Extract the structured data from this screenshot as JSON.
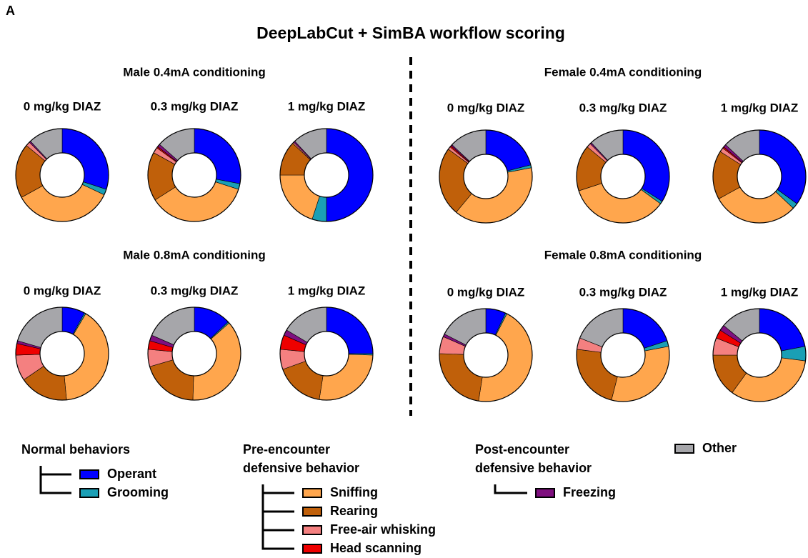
{
  "panel_label": "A",
  "title": "DeepLabCut + SimBA workflow scoring",
  "panels": [
    {
      "title": "Male 0.4mA conditioning"
    },
    {
      "title": "Female 0.4mA conditioning"
    },
    {
      "title": "Male 0.8mA conditioning"
    },
    {
      "title": "Female 0.8mA conditioning"
    }
  ],
  "legend_groups": [
    {
      "title_lines": [
        "Normal behaviors"
      ],
      "items": [
        {
          "name": "Operant",
          "color": "#0000ff"
        },
        {
          "name": "Grooming",
          "color": "#1a9fb5"
        }
      ]
    },
    {
      "title_lines": [
        "Pre-encounter",
        "defensive behavior"
      ],
      "items": [
        {
          "name": "Sniffing",
          "color": "#ffa64d"
        },
        {
          "name": "Rearing",
          "color": "#c0600a"
        },
        {
          "name": "Free-air whisking",
          "color": "#f48080"
        },
        {
          "name": "Head scanning",
          "color": "#ee0000"
        }
      ]
    },
    {
      "title_lines": [
        "Post-encounter",
        "defensive behavior"
      ],
      "items": [
        {
          "name": "Freezing",
          "color": "#7f0f7f"
        }
      ]
    },
    {
      "items": [
        {
          "name": "Other",
          "color": "#a6a6aa"
        }
      ]
    }
  ],
  "chart_data": [
    {
      "type": "pie",
      "title": "0 mg/kg DIAZ",
      "values": [
        30,
        2,
        35,
        19,
        1.5,
        0,
        0.5,
        12
      ]
    },
    {
      "type": "pie",
      "title": "0.3 mg/kg DIAZ",
      "values": [
        28,
        2,
        36,
        17,
        2,
        0.5,
        1,
        13.5
      ]
    },
    {
      "type": "pie",
      "title": "1 mg/kg DIAZ",
      "values": [
        50,
        5,
        20,
        12,
        0.5,
        0,
        0.5,
        12
      ]
    },
    {
      "type": "pie",
      "title": "0 mg/kg DIAZ",
      "values": [
        21,
        1,
        39,
        24,
        1,
        0.5,
        0.5,
        13
      ]
    },
    {
      "type": "pie",
      "title": "0.3 mg/kg DIAZ",
      "values": [
        34,
        1,
        35,
        16,
        1.5,
        0,
        0.5,
        12
      ]
    },
    {
      "type": "pie",
      "title": "1 mg/kg DIAZ",
      "values": [
        35,
        2,
        30,
        17,
        1.5,
        0.5,
        1,
        13
      ]
    },
    {
      "type": "pie",
      "title": "0 mg/kg DIAZ",
      "values": [
        8,
        0.5,
        40,
        17,
        9,
        4,
        1,
        20.5
      ]
    },
    {
      "type": "pie",
      "title": "0.3 mg/kg DIAZ",
      "values": [
        13,
        0.5,
        37,
        20,
        6,
        3,
        2,
        18.5
      ]
    },
    {
      "type": "pie",
      "title": "1 mg/kg DIAZ",
      "values": [
        25,
        0.5,
        27,
        17,
        7,
        5,
        2,
        16.5
      ]
    },
    {
      "type": "pie",
      "title": "0 mg/kg DIAZ",
      "values": [
        7,
        0.5,
        45,
        23,
        6,
        0,
        1,
        17.5
      ]
    },
    {
      "type": "pie",
      "title": "0.3 mg/kg DIAZ",
      "values": [
        20,
        2,
        32,
        23,
        4,
        0,
        0,
        19
      ]
    },
    {
      "type": "pie",
      "title": "1 mg/kg DIAZ",
      "values": [
        22,
        5,
        33,
        15,
        6,
        3,
        2,
        14
      ]
    }
  ]
}
